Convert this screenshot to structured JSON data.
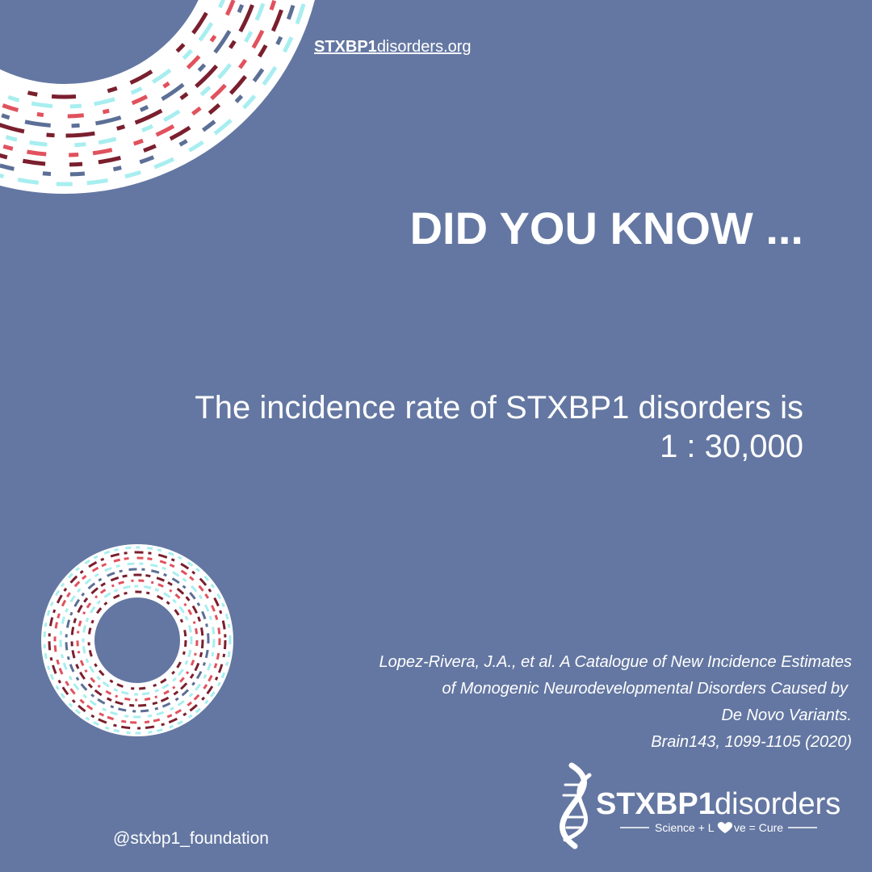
{
  "website": {
    "bold": "STXBP1",
    "rest": "disorders.org"
  },
  "heading": "DID YOU KNOW ...",
  "statement": [
    "The incidence rate of STXBP1 disorders is",
    "1 : 30,000"
  ],
  "citation": [
    "Lopez-Rivera, J.A., et al. A Catalogue of New Incidence Estimates",
    "of Monogenic Neurodevelopmental Disorders Caused by",
    "De Novo Variants.",
    "Brain143, 1099-1105 (2020)"
  ],
  "logo": {
    "name_bold": "STXBP1",
    "name_light": "disorders",
    "tagline_start": "Science + L",
    "tagline_end": "ve = Cure"
  },
  "handle": "@stxbp1_foundation"
}
